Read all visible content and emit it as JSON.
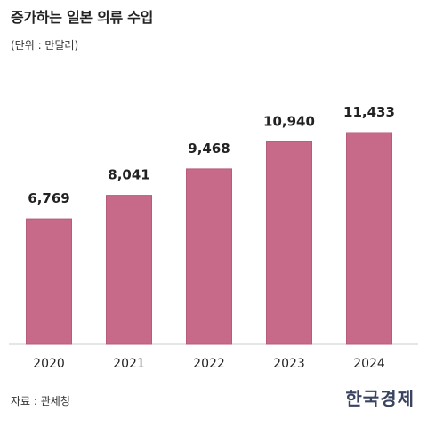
{
  "header": {
    "title": "증가하는 일본 의류 수입",
    "unit": "(단위 : 만달러)"
  },
  "footer": {
    "source": "자료 : 관세청",
    "brand": "한국경제"
  },
  "colors": {
    "bar": "#c76a89",
    "bar_stroke": "#b85a7a",
    "baseline": "#cccccc",
    "label": "#222222"
  },
  "chart_data": {
    "type": "bar",
    "categories": [
      "2020",
      "2021",
      "2022",
      "2023",
      "2024"
    ],
    "values": [
      6769,
      8041,
      9468,
      10940,
      11433
    ],
    "value_labels": [
      "6,769",
      "8,041",
      "9,468",
      "10,940",
      "11,433"
    ],
    "title": "증가하는 일본 의류 수입",
    "xlabel": "",
    "ylabel": "(단위 : 만달러)",
    "ylim": [
      0,
      13000
    ],
    "grid": false,
    "legend": "none"
  }
}
